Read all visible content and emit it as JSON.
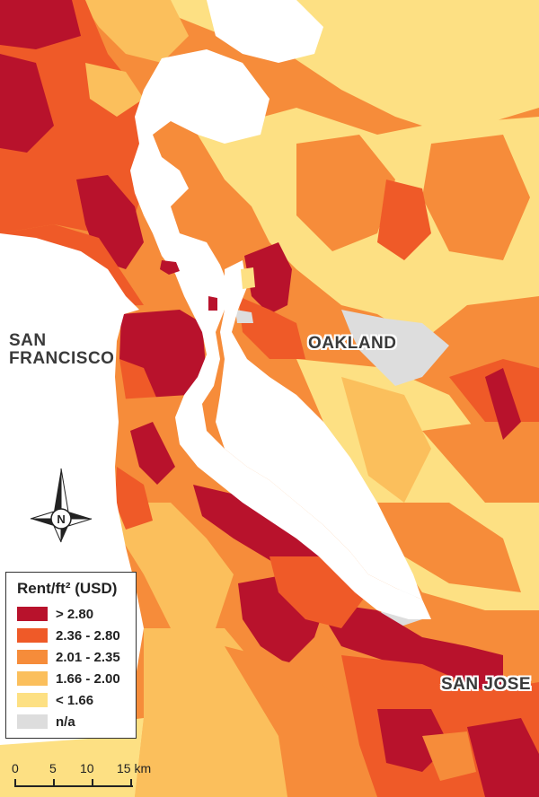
{
  "map": {
    "colors": {
      "water": "#ffffff",
      "na": "#dddddd",
      "class1": "#b8122c",
      "class2": "#ef5a28",
      "class3": "#f68c3a",
      "class4": "#fbbf5c",
      "class5": "#fde083"
    },
    "cities": {
      "san_francisco_line1": "SAN",
      "san_francisco_line2": "FRANCISCO",
      "oakland": "OAKLAND",
      "san_jose": "SAN JOSE"
    },
    "compass_letter": "N",
    "compass_icon": "north-arrow-compass-rose"
  },
  "legend": {
    "title": "Rent/ft² (USD)",
    "items": [
      {
        "label": "> 2.80",
        "color": "#b8122c"
      },
      {
        "label": "2.36 - 2.80",
        "color": "#ef5a28"
      },
      {
        "label": "2.01 - 2.35",
        "color": "#f68c3a"
      },
      {
        "label": "1.66 - 2.00",
        "color": "#fbbf5c"
      },
      {
        "label": "< 1.66",
        "color": "#fde083"
      },
      {
        "label": "n/a",
        "color": "#dddddd"
      }
    ]
  },
  "scalebar": {
    "ticks": [
      "0",
      "5",
      "10",
      "15 km"
    ]
  }
}
